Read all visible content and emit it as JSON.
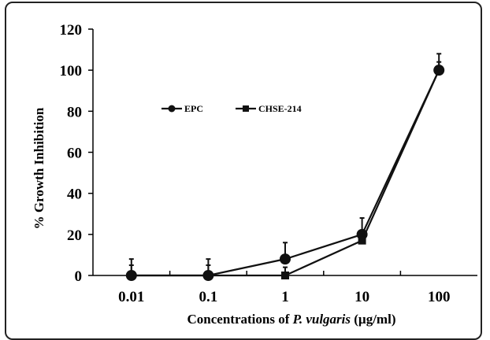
{
  "chart_data": {
    "type": "line",
    "x_scale": "log",
    "categories": [
      "0.01",
      "0.1",
      "1",
      "10",
      "100"
    ],
    "x": [
      0.01,
      0.1,
      1,
      10,
      100
    ],
    "ylabel": "% Growth Inhibition",
    "xlabel_parts": [
      "Concentrations of ",
      "P. vulgaris",
      " (µg/ml)"
    ],
    "ylim": [
      0,
      120
    ],
    "yticks": [
      "0",
      "20",
      "40",
      "60",
      "80",
      "100",
      "120"
    ],
    "grid": false,
    "legend_position": "upper-left inside plot",
    "series": [
      {
        "name": "EPC",
        "marker": "circle",
        "color": "#111111",
        "values": [
          0,
          0,
          8,
          20,
          100
        ],
        "error": [
          8,
          8,
          8,
          8,
          8
        ]
      },
      {
        "name": "CHSE-214",
        "marker": "square",
        "color": "#111111",
        "values": [
          0,
          0,
          0,
          17,
          100
        ],
        "error": [
          5,
          5,
          4,
          4,
          4
        ]
      }
    ]
  }
}
